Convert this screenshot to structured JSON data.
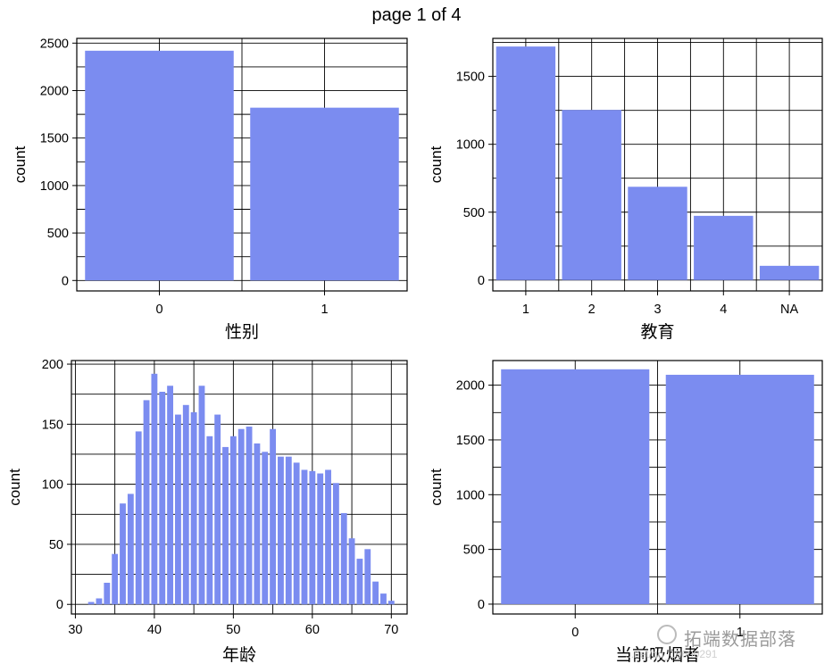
{
  "page_title": "page 1 of 4",
  "watermark": {
    "brand": "拓端数据部落",
    "url": "...net/qq_19600291"
  },
  "colors": {
    "bar": "#7b8cf0",
    "grid": "#000000"
  },
  "chart_data": [
    {
      "type": "bar",
      "xlabel": "性别",
      "ylabel": "count",
      "categories": [
        "0",
        "1"
      ],
      "values": [
        2420,
        1820
      ],
      "ylim": [
        -110,
        2550
      ],
      "yticks": [
        0,
        500,
        1000,
        1500,
        2000,
        2500
      ],
      "grid": true
    },
    {
      "type": "bar",
      "xlabel": "教育",
      "ylabel": "count",
      "categories": [
        "1",
        "2",
        "3",
        "4",
        "NA"
      ],
      "values": [
        1720,
        1253,
        687,
        473,
        105
      ],
      "ylim": [
        -80,
        1780
      ],
      "yticks": [
        0,
        500,
        1000,
        1500
      ],
      "grid": true
    },
    {
      "type": "bar",
      "histogram": true,
      "xlabel": "年龄",
      "ylabel": "count",
      "x": [
        32,
        33,
        34,
        35,
        36,
        37,
        38,
        39,
        40,
        41,
        42,
        43,
        44,
        45,
        46,
        47,
        48,
        49,
        50,
        51,
        52,
        53,
        54,
        55,
        56,
        57,
        58,
        59,
        60,
        61,
        62,
        63,
        64,
        65,
        66,
        67,
        68,
        69,
        70
      ],
      "values": [
        2,
        5,
        18,
        42,
        84,
        92,
        144,
        170,
        192,
        177,
        182,
        158,
        166,
        160,
        182,
        140,
        158,
        131,
        140,
        146,
        148,
        134,
        127,
        146,
        123,
        123,
        118,
        112,
        111,
        109,
        112,
        101,
        76,
        55,
        38,
        46,
        19,
        9,
        3
      ],
      "xlim": [
        29.5,
        72
      ],
      "xticks": [
        30,
        40,
        50,
        60,
        70
      ],
      "ylim": [
        -8,
        203
      ],
      "yticks": [
        0,
        50,
        100,
        150,
        200
      ],
      "grid": true
    },
    {
      "type": "bar",
      "xlabel": "当前吸烟者",
      "ylabel": "count",
      "categories": [
        "0",
        "1"
      ],
      "values": [
        2145,
        2095
      ],
      "ylim": [
        -90,
        2225
      ],
      "yticks": [
        0,
        500,
        1000,
        1500,
        2000
      ],
      "grid": true
    }
  ]
}
